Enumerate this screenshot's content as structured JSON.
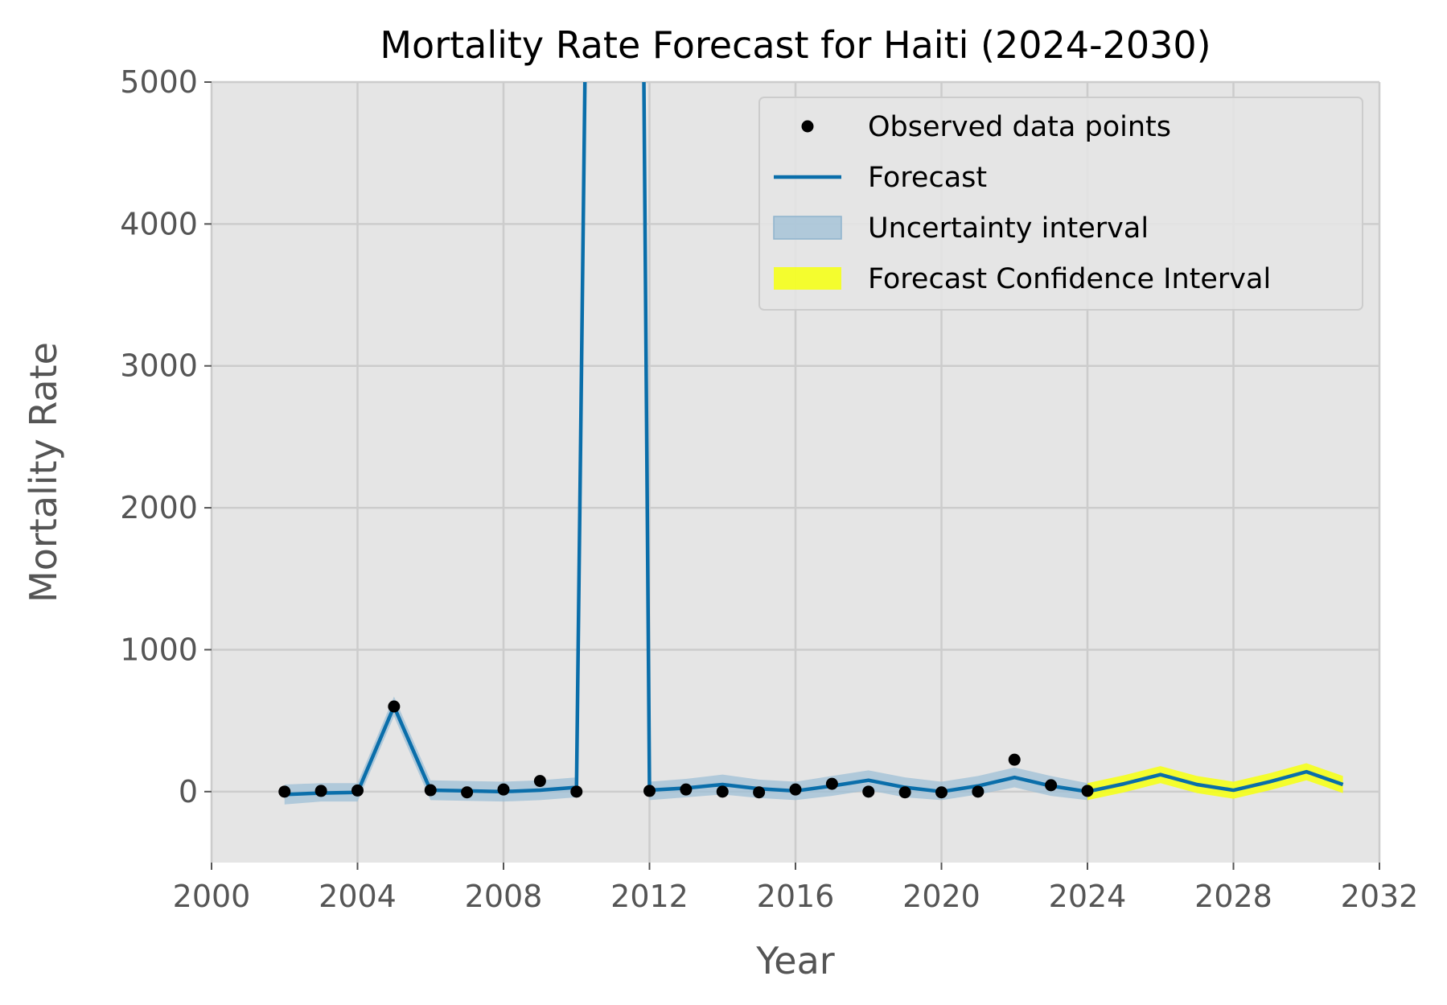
{
  "chart_data": {
    "type": "line",
    "title": "Mortality Rate Forecast for Haiti (2024-2030)",
    "xlabel": "Year",
    "ylabel": "Mortality Rate",
    "xlim": [
      2000,
      2032
    ],
    "ylim": [
      -500,
      5000
    ],
    "xticks": [
      2000,
      2004,
      2008,
      2012,
      2016,
      2020,
      2024,
      2028,
      2032
    ],
    "yticks": [
      0,
      1000,
      2000,
      3000,
      4000,
      5000
    ],
    "grid": true,
    "legend_position": "top-right",
    "colors": {
      "background": "#e5e5e5",
      "grid": "#cccccc",
      "forecast": "#0a6eaa",
      "uncertainty": "#9dbfd6",
      "confidence": "#f5ff1a",
      "points": "#000000"
    },
    "legend": [
      {
        "key": "points",
        "label": "Observed data points"
      },
      {
        "key": "forecast",
        "label": "Forecast"
      },
      {
        "key": "uncertainty",
        "label": "Uncertainty interval"
      },
      {
        "key": "confidence",
        "label": "Forecast Confidence Interval"
      }
    ],
    "observed": {
      "name": "Observed data points",
      "x": [
        2002,
        2003,
        2004,
        2005,
        2006,
        2007,
        2008,
        2009,
        2010,
        2012,
        2013,
        2014,
        2015,
        2016,
        2017,
        2018,
        2019,
        2020,
        2021,
        2022,
        2023,
        2024
      ],
      "y": [
        0,
        5,
        8,
        600,
        10,
        -5,
        15,
        75,
        0,
        5,
        15,
        0,
        -5,
        15,
        55,
        0,
        -5,
        -5,
        0,
        225,
        45,
        5
      ]
    },
    "forecast": {
      "name": "Forecast",
      "x": [
        2002,
        2003,
        2004,
        2005,
        2006,
        2007,
        2008,
        2009,
        2010,
        2010.3,
        2011.8,
        2012,
        2013,
        2014,
        2015,
        2016,
        2017,
        2018,
        2019,
        2020,
        2021,
        2022,
        2023,
        2024,
        2025,
        2026,
        2027,
        2028,
        2029,
        2030,
        2031
      ],
      "y": [
        -20,
        -10,
        -5,
        600,
        10,
        5,
        0,
        10,
        30,
        6500,
        6500,
        10,
        25,
        50,
        20,
        5,
        40,
        80,
        30,
        0,
        40,
        100,
        40,
        0,
        55,
        120,
        50,
        10,
        70,
        140,
        50
      ]
    },
    "uncertainty": {
      "name": "Uncertainty interval",
      "x": [
        2002,
        2003,
        2004,
        2005,
        2006,
        2007,
        2008,
        2009,
        2010,
        2012,
        2013,
        2014,
        2015,
        2016,
        2017,
        2018,
        2019,
        2020,
        2021,
        2022,
        2023,
        2024
      ],
      "lower": [
        -90,
        -70,
        -70,
        530,
        -60,
        -65,
        -70,
        -60,
        -40,
        -60,
        -40,
        -20,
        -45,
        -60,
        -30,
        10,
        -40,
        -60,
        -20,
        30,
        -30,
        -60
      ],
      "upper": [
        50,
        60,
        60,
        670,
        80,
        75,
        70,
        80,
        100,
        70,
        90,
        120,
        85,
        70,
        110,
        150,
        100,
        70,
        110,
        170,
        110,
        60
      ]
    },
    "confidence": {
      "name": "Forecast Confidence Interval",
      "x": [
        2024,
        2025,
        2026,
        2027,
        2028,
        2029,
        2030,
        2031
      ],
      "lower": [
        -60,
        -5,
        60,
        -10,
        -50,
        10,
        80,
        -10
      ],
      "upper": [
        60,
        115,
        180,
        110,
        70,
        130,
        200,
        110
      ]
    }
  }
}
